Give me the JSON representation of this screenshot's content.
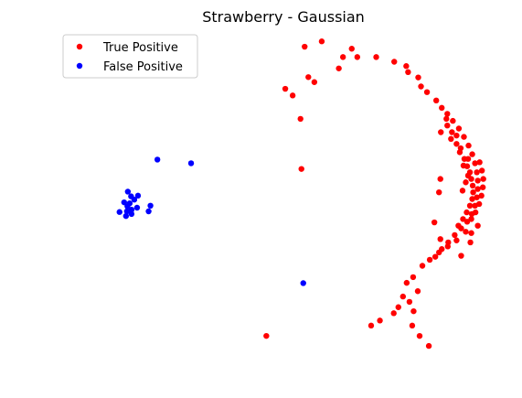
{
  "chart_data": {
    "type": "scatter",
    "title": "Strawberry - Gaussian",
    "xlabel": "",
    "ylabel": "",
    "axes_visible": false,
    "grid": false,
    "legend_position": "top-left",
    "xlim": [
      0,
      1
    ],
    "ylim": [
      0,
      1
    ],
    "series": [
      {
        "name": "True Positive",
        "color": "#ff0000",
        "points": [
          [
            0.551,
            0.956
          ],
          [
            0.588,
            0.972
          ],
          [
            0.653,
            0.95
          ],
          [
            0.665,
            0.925
          ],
          [
            0.706,
            0.925
          ],
          [
            0.625,
            0.891
          ],
          [
            0.634,
            0.925
          ],
          [
            0.745,
            0.911
          ],
          [
            0.771,
            0.898
          ],
          [
            0.775,
            0.88
          ],
          [
            0.797,
            0.864
          ],
          [
            0.803,
            0.837
          ],
          [
            0.816,
            0.82
          ],
          [
            0.836,
            0.795
          ],
          [
            0.848,
            0.773
          ],
          [
            0.86,
            0.755
          ],
          [
            0.872,
            0.734
          ],
          [
            0.885,
            0.711
          ],
          [
            0.896,
            0.686
          ],
          [
            0.906,
            0.66
          ],
          [
            0.914,
            0.634
          ],
          [
            0.92,
            0.607
          ],
          [
            0.924,
            0.58
          ],
          [
            0.926,
            0.555
          ],
          [
            0.926,
            0.53
          ],
          [
            0.924,
            0.505
          ],
          [
            0.92,
            0.48
          ],
          [
            0.913,
            0.455
          ],
          [
            0.903,
            0.432
          ],
          [
            0.89,
            0.412
          ],
          [
            0.876,
            0.392
          ],
          [
            0.862,
            0.37
          ],
          [
            0.848,
            0.35
          ],
          [
            0.834,
            0.327
          ],
          [
            0.858,
            0.74
          ],
          [
            0.846,
            0.7
          ],
          [
            0.868,
            0.68
          ],
          [
            0.88,
            0.69
          ],
          [
            0.889,
            0.652
          ],
          [
            0.897,
            0.62
          ],
          [
            0.903,
            0.598
          ],
          [
            0.909,
            0.58
          ],
          [
            0.912,
            0.56
          ],
          [
            0.915,
            0.54
          ],
          [
            0.916,
            0.52
          ],
          [
            0.914,
            0.5
          ],
          [
            0.909,
            0.48
          ],
          [
            0.902,
            0.46
          ],
          [
            0.894,
            0.44
          ],
          [
            0.884,
            0.42
          ],
          [
            0.893,
            0.525
          ],
          [
            0.9,
            0.55
          ],
          [
            0.905,
            0.57
          ],
          [
            0.895,
            0.6
          ],
          [
            0.887,
            0.64
          ],
          [
            0.88,
            0.665
          ],
          [
            0.87,
            0.7
          ],
          [
            0.86,
            0.72
          ],
          [
            0.93,
            0.61
          ],
          [
            0.935,
            0.585
          ],
          [
            0.938,
            0.56
          ],
          [
            0.937,
            0.535
          ],
          [
            0.934,
            0.51
          ],
          [
            0.929,
            0.485
          ],
          [
            0.921,
            0.46
          ],
          [
            0.912,
            0.44
          ],
          [
            0.9,
            0.402
          ],
          [
            0.912,
            0.398
          ],
          [
            0.88,
            0.376
          ],
          [
            0.861,
            0.358
          ],
          [
            0.842,
            0.34
          ],
          [
            0.822,
            0.318
          ],
          [
            0.806,
            0.3
          ],
          [
            0.786,
            0.266
          ],
          [
            0.772,
            0.249
          ],
          [
            0.796,
            0.224
          ],
          [
            0.764,
            0.208
          ],
          [
            0.778,
            0.192
          ],
          [
            0.754,
            0.176
          ],
          [
            0.744,
            0.158
          ],
          [
            0.714,
            0.136
          ],
          [
            0.695,
            0.121
          ],
          [
            0.787,
            0.164
          ],
          [
            0.784,
            0.121
          ],
          [
            0.8,
            0.09
          ],
          [
            0.82,
            0.06
          ],
          [
            0.845,
            0.38
          ],
          [
            0.832,
            0.43
          ],
          [
            0.89,
            0.33
          ],
          [
            0.91,
            0.37
          ],
          [
            0.926,
            0.42
          ],
          [
            0.905,
            0.62
          ],
          [
            0.845,
            0.56
          ],
          [
            0.842,
            0.52
          ],
          [
            0.544,
            0.59
          ],
          [
            0.542,
            0.74
          ],
          [
            0.468,
            0.09
          ],
          [
            0.509,
            0.83
          ],
          [
            0.525,
            0.81
          ],
          [
            0.559,
            0.865
          ],
          [
            0.572,
            0.85
          ]
        ]
      },
      {
        "name": "False Positive",
        "color": "#0000ff",
        "points": [
          [
            0.232,
            0.618
          ],
          [
            0.305,
            0.607
          ],
          [
            0.168,
            0.522
          ],
          [
            0.175,
            0.508
          ],
          [
            0.182,
            0.498
          ],
          [
            0.16,
            0.49
          ],
          [
            0.167,
            0.478
          ],
          [
            0.176,
            0.468
          ],
          [
            0.188,
            0.474
          ],
          [
            0.15,
            0.461
          ],
          [
            0.164,
            0.449
          ],
          [
            0.176,
            0.455
          ],
          [
            0.217,
            0.48
          ],
          [
            0.213,
            0.463
          ],
          [
            0.548,
            0.248
          ],
          [
            0.19,
            0.51
          ],
          [
            0.172,
            0.487
          ],
          [
            0.166,
            0.463
          ]
        ]
      }
    ]
  }
}
